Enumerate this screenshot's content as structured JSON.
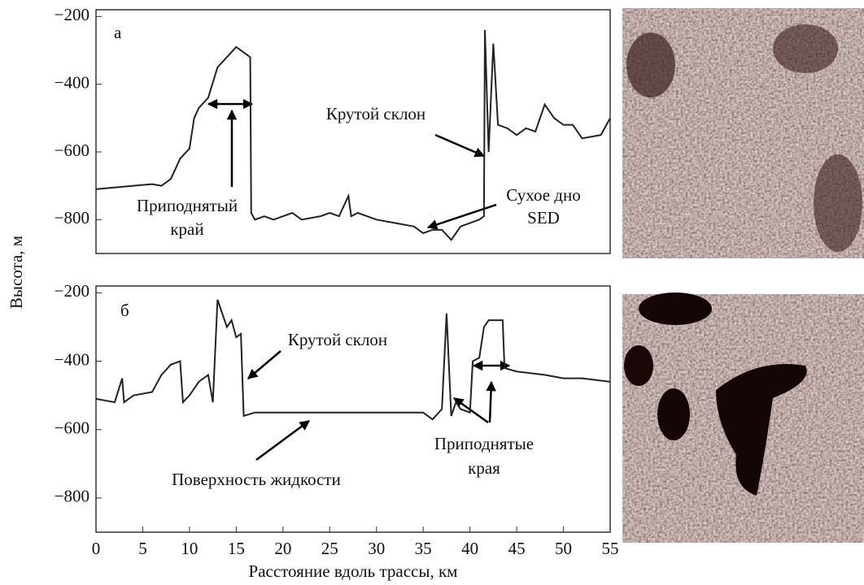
{
  "chart_data": [
    {
      "type": "line",
      "label": "а",
      "color": "#222",
      "xlim": [
        0,
        55
      ],
      "ylim": [
        -900,
        -180
      ],
      "yticks": [
        {
          "value": -200,
          "label": "−200"
        },
        {
          "value": -400,
          "label": "−400"
        },
        {
          "value": -600,
          "label": "−600"
        },
        {
          "value": -800,
          "label": "−800"
        }
      ],
      "ylabel": "Высота, м",
      "annotations": [
        "Приподнятый",
        "край",
        "Крутой склон",
        "Сухое дно",
        "SED"
      ],
      "x": [
        0,
        2,
        4,
        6,
        7,
        8,
        9,
        10,
        10.5,
        11,
        12,
        13,
        14,
        15,
        16,
        16.5,
        16.6,
        17,
        18,
        19,
        20,
        21,
        22,
        24,
        25,
        26,
        27,
        27.3,
        28,
        30,
        32,
        34,
        35,
        36,
        37,
        38,
        39,
        41,
        41.5,
        41.6,
        42,
        42.5,
        43,
        44,
        45,
        46,
        47,
        48,
        49,
        50,
        51,
        52,
        54,
        55
      ],
      "values": [
        -710,
        -705,
        -700,
        -695,
        -700,
        -680,
        -620,
        -590,
        -500,
        -470,
        -440,
        -350,
        -320,
        -290,
        -310,
        -320,
        -780,
        -800,
        -790,
        -800,
        -790,
        -780,
        -800,
        -790,
        -780,
        -790,
        -730,
        -790,
        -780,
        -800,
        -810,
        -820,
        -840,
        -830,
        -830,
        -860,
        -820,
        -800,
        -790,
        -240,
        -600,
        -280,
        -520,
        -530,
        -550,
        -530,
        -540,
        -460,
        -500,
        -520,
        -520,
        -560,
        -550,
        -500
      ]
    },
    {
      "type": "line",
      "label": "б",
      "color": "#222",
      "xlim": [
        0,
        55
      ],
      "ylim": [
        -900,
        -180
      ],
      "xticks": [
        0,
        5,
        10,
        15,
        20,
        25,
        30,
        35,
        40,
        45,
        50,
        55
      ],
      "yticks": [
        {
          "value": -200,
          "label": "−200"
        },
        {
          "value": -400,
          "label": "−400"
        },
        {
          "value": -600,
          "label": "−600"
        },
        {
          "value": -800,
          "label": "−800"
        }
      ],
      "xlabel": "Расстояние вдоль трассы, км",
      "annotations": [
        "Крутой склон",
        "Поверхность жидкости",
        "Приподнятые",
        "края"
      ],
      "x": [
        0,
        2,
        2.8,
        3,
        4,
        6,
        7,
        8,
        9,
        9.3,
        10,
        11,
        12,
        12.5,
        13,
        14,
        14.5,
        15,
        15.5,
        15.8,
        17,
        20,
        25,
        30,
        35,
        36,
        37,
        37.5,
        38,
        38.5,
        39,
        40,
        40.3,
        41,
        41.5,
        42,
        43.5,
        43.7,
        45,
        48,
        50,
        52,
        55
      ],
      "values": [
        -510,
        -520,
        -450,
        -520,
        -500,
        -490,
        -440,
        -410,
        -400,
        -520,
        -500,
        -460,
        -440,
        -520,
        -220,
        -300,
        -280,
        -330,
        -320,
        -560,
        -550,
        -550,
        -550,
        -550,
        -550,
        -570,
        -540,
        -260,
        -560,
        -520,
        -540,
        -550,
        -400,
        -390,
        -300,
        -280,
        -280,
        -420,
        -430,
        -440,
        -450,
        -450,
        -460
      ]
    }
  ]
}
